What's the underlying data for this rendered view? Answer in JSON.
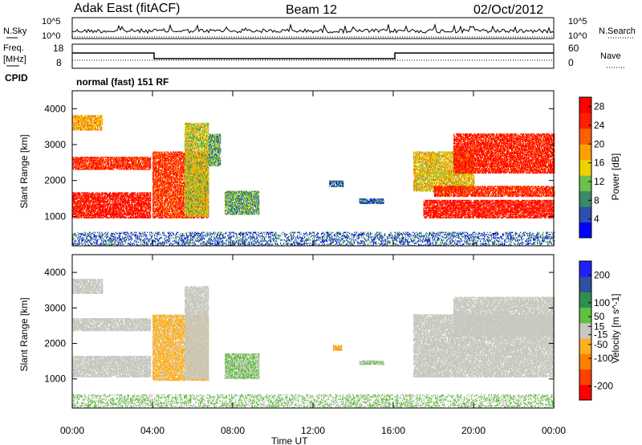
{
  "header": {
    "station": "Adak East (fitACF)",
    "beam": "Beam 12",
    "date": "02/Oct/2012"
  },
  "panels": {
    "nsky": {
      "left_label": "N.Sky",
      "right_label": "N.Search",
      "left_ticks": [
        "10^5",
        "10^0"
      ],
      "right_ticks": [
        "10^5",
        "10^0"
      ]
    },
    "freq": {
      "left_label_1": "Freq.",
      "left_label_2": "[MHz]",
      "left_ticks": [
        "18",
        "8"
      ],
      "right_label": "Nave",
      "right_ticks": [
        "60",
        "0"
      ],
      "cpid_label": "CPID",
      "cpid_text": "normal (fast) 151 RF"
    }
  },
  "colors": {
    "power_scale": [
      "#0000ff",
      "#2d4fb0",
      "#3a8a6a",
      "#6cc04a",
      "#f0d000",
      "#ffa000",
      "#ff6000",
      "#ff2000",
      "#ff0000"
    ],
    "velocity_scale": [
      "#ff0000",
      "#ff4000",
      "#ff8000",
      "#ffb020",
      "#c8c8c0",
      "#60c040",
      "#2f8f50",
      "#3050a0",
      "#2020ff"
    ],
    "background": "#ffffff"
  },
  "chart_data": [
    {
      "type": "heatmap",
      "title": "Power",
      "xlabel": "Time UT",
      "ylabel": "Slant Range [km]",
      "x_ticks": [
        "00:00",
        "04:00",
        "08:00",
        "12:00",
        "16:00",
        "20:00",
        "00:00"
      ],
      "xlim_hours": [
        0,
        24
      ],
      "y_ticks": [
        1000,
        2000,
        3000,
        4000
      ],
      "ylim": [
        180,
        4500
      ],
      "colorbar": {
        "label": "Power [dB]",
        "ticks": [
          4,
          8,
          12,
          16,
          20,
          24,
          28
        ],
        "range": [
          0,
          30
        ]
      },
      "regions": [
        {
          "t": [
            0.0,
            3.9
          ],
          "r": [
            950,
            1650
          ],
          "value": 27
        },
        {
          "t": [
            0.0,
            3.9
          ],
          "r": [
            2300,
            2650
          ],
          "value": 25
        },
        {
          "t": [
            0.0,
            1.5
          ],
          "r": [
            3400,
            3800
          ],
          "value": 18
        },
        {
          "t": [
            4.0,
            6.8
          ],
          "r": [
            950,
            2800
          ],
          "value": 24
        },
        {
          "t": [
            5.6,
            6.8
          ],
          "r": [
            1000,
            3600
          ],
          "value": 14
        },
        {
          "t": [
            6.8,
            7.4
          ],
          "r": [
            2400,
            3300
          ],
          "value": 10
        },
        {
          "t": [
            7.6,
            9.3
          ],
          "r": [
            1050,
            1700
          ],
          "value": 10
        },
        {
          "t": [
            12.8,
            13.5
          ],
          "r": [
            1820,
            2000
          ],
          "value": 6
        },
        {
          "t": [
            14.3,
            15.5
          ],
          "r": [
            1350,
            1480
          ],
          "value": 6
        },
        {
          "t": [
            17.0,
            20.0
          ],
          "r": [
            1700,
            2800
          ],
          "value": 16
        },
        {
          "t": [
            17.5,
            24.0
          ],
          "r": [
            950,
            1450
          ],
          "value": 27
        },
        {
          "t": [
            18.0,
            24.0
          ],
          "r": [
            1550,
            1850
          ],
          "value": 25
        },
        {
          "t": [
            19.0,
            24.0
          ],
          "r": [
            2200,
            3300
          ],
          "value": 26
        },
        {
          "t": [
            0.0,
            24.0
          ],
          "r": [
            180,
            560
          ],
          "value": 6
        }
      ]
    },
    {
      "type": "heatmap",
      "title": "Velocity",
      "xlabel": "Time UT",
      "ylabel": "Slant Range [km]",
      "x_ticks": [
        "00:00",
        "04:00",
        "08:00",
        "12:00",
        "16:00",
        "20:00",
        "00:00"
      ],
      "xlim_hours": [
        0,
        24
      ],
      "y_ticks": [
        1000,
        2000,
        3000,
        4000
      ],
      "ylim": [
        180,
        4500
      ],
      "colorbar": {
        "label": "Velocity [m s^-1]",
        "ticks": [
          200,
          100,
          50,
          15,
          -15,
          -50,
          -100,
          -200
        ],
        "range": [
          -250,
          250
        ]
      },
      "regions": [
        {
          "t": [
            0.0,
            3.9
          ],
          "r": [
            1050,
            1650
          ],
          "value": 0
        },
        {
          "t": [
            0.0,
            3.9
          ],
          "r": [
            2350,
            2700
          ],
          "value": 0
        },
        {
          "t": [
            0.0,
            1.5
          ],
          "r": [
            3400,
            3800
          ],
          "value": 0
        },
        {
          "t": [
            4.0,
            6.8
          ],
          "r": [
            950,
            2800
          ],
          "value": -40
        },
        {
          "t": [
            5.6,
            6.8
          ],
          "r": [
            1000,
            3600
          ],
          "value": 0
        },
        {
          "t": [
            7.6,
            9.3
          ],
          "r": [
            1000,
            1700
          ],
          "value": 30
        },
        {
          "t": [
            13.0,
            13.4
          ],
          "r": [
            1800,
            1950
          ],
          "value": -80
        },
        {
          "t": [
            14.3,
            15.5
          ],
          "r": [
            1400,
            1500
          ],
          "value": 30
        },
        {
          "t": [
            17.0,
            24.0
          ],
          "r": [
            1050,
            2800
          ],
          "value": 0
        },
        {
          "t": [
            19.0,
            24.0
          ],
          "r": [
            2200,
            3300
          ],
          "value": 0
        },
        {
          "t": [
            0.0,
            24.0
          ],
          "r": [
            180,
            560
          ],
          "value": 30
        }
      ]
    }
  ]
}
